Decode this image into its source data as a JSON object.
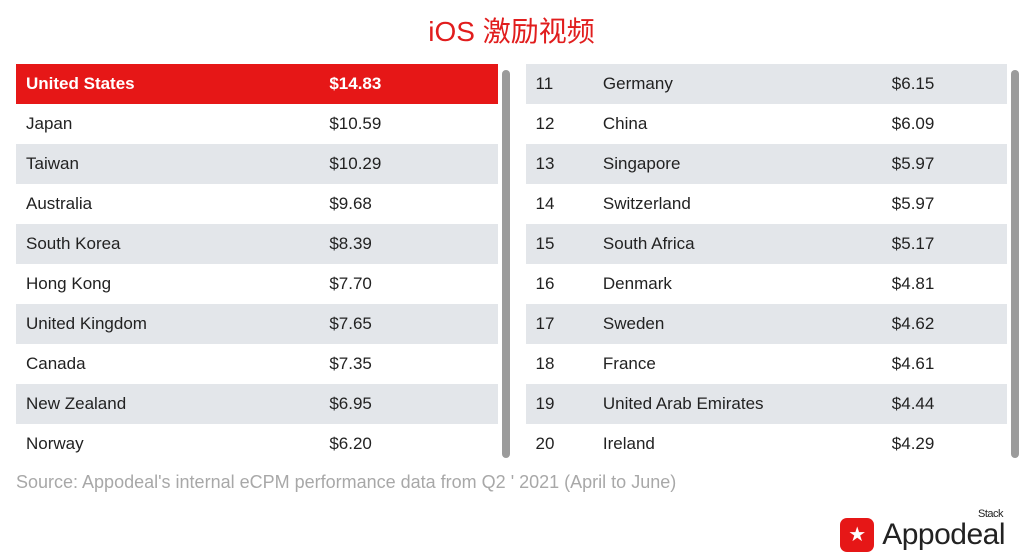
{
  "title": {
    "text": "iOS 激励视频",
    "color": "#e11d1d"
  },
  "colors": {
    "header_bg": "#e61717",
    "header_text": "#ffffff",
    "row_alt_bg": "#e3e6ea",
    "row_bg": "#ffffff",
    "scrollbar": "#9b9b9b",
    "source_text": "#a8a8a8",
    "logo_bg": "#e61717"
  },
  "left_table": {
    "rows": [
      {
        "country": "United States",
        "value": "$14.83",
        "header": true
      },
      {
        "country": "Japan",
        "value": "$10.59"
      },
      {
        "country": "Taiwan",
        "value": "$10.29"
      },
      {
        "country": "Australia",
        "value": "$9.68"
      },
      {
        "country": "South Korea",
        "value": "$8.39"
      },
      {
        "country": "Hong Kong",
        "value": "$7.70"
      },
      {
        "country": "United Kingdom",
        "value": "$7.65"
      },
      {
        "country": "Canada",
        "value": "$7.35"
      },
      {
        "country": "New Zealand",
        "value": "$6.95"
      },
      {
        "country": "Norway",
        "value": "$6.20"
      }
    ]
  },
  "right_table": {
    "rows": [
      {
        "rank": "11",
        "country": "Germany",
        "value": "$6.15"
      },
      {
        "rank": "12",
        "country": "China",
        "value": "$6.09"
      },
      {
        "rank": "13",
        "country": "Singapore",
        "value": "$5.97"
      },
      {
        "rank": "14",
        "country": "Switzerland",
        "value": "$5.97"
      },
      {
        "rank": "15",
        "country": "South Africa",
        "value": "$5.17"
      },
      {
        "rank": "16",
        "country": "Denmark",
        "value": "$4.81"
      },
      {
        "rank": "17",
        "country": "Sweden",
        "value": "$4.62"
      },
      {
        "rank": "18",
        "country": "France",
        "value": "$4.61"
      },
      {
        "rank": "19",
        "country": "United Arab Emirates",
        "value": "$4.44"
      },
      {
        "rank": "20",
        "country": "Ireland",
        "value": "$4.29"
      }
    ]
  },
  "source": "Source: Appodeal's internal eCPM performance data from Q2 ' 2021 (April to June)",
  "logo": {
    "stack": "Stack",
    "name": "Appodeal"
  }
}
